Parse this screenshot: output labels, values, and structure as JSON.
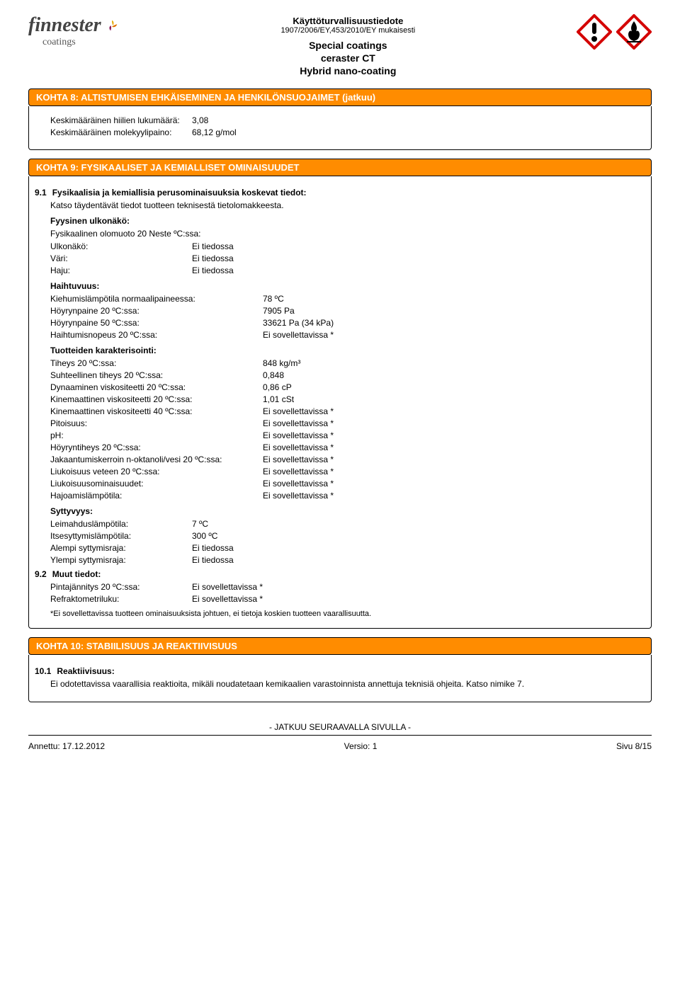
{
  "header": {
    "logo_text": "finnester",
    "logo_sub": "coatings",
    "doc_title": "Käyttöturvallisuustiedote",
    "doc_reg": "1907/2006/EY,453/2010/EY mukaisesti",
    "product_line1": "Special coatings",
    "product_line2": "ceraster CT",
    "product_line3": "Hybrid nano-coating"
  },
  "colors": {
    "section_bar_bg": "#ff8c00",
    "section_bar_fg": "#ffffff",
    "logo_petal1": "#e6a800",
    "logo_petal2": "#e07000",
    "logo_petal3": "#8b1a5a",
    "ghs_border": "#d40000",
    "ghs_symbol": "#000000"
  },
  "section8": {
    "title": "KOHTA 8: ALTISTUMISEN EHKÄISEMINEN JA HENKILÖNSUOJAIMET (jatkuu)",
    "rows": [
      {
        "label": "Keskimääräinen hiilien lukumäärä:",
        "value": "3,08"
      },
      {
        "label": "Keskimääräinen molekyylipaino:",
        "value": "68,12 g/mol"
      }
    ]
  },
  "section9": {
    "title": "KOHTA 9: FYSIKAALISET JA KEMIALLISET OMINAISUUDET",
    "sub1_num": "9.1",
    "sub1_title": "Fysikaalisia ja kemiallisia perusominaisuuksia koskevat tiedot:",
    "intro": "Katso täydentävät tiedot tuotteen teknisestä tietolomakkeesta.",
    "appearance_head": "Fyysinen ulkonäkö:",
    "appearance_line": "Fysikaalinen olomuoto 20 Neste ºC:ssa:",
    "appearance_rows": [
      {
        "label": "Ulkonäkö:",
        "value": "Ei tiedossa"
      },
      {
        "label": "Väri:",
        "value": "Ei tiedossa"
      },
      {
        "label": "Haju:",
        "value": "Ei tiedossa"
      }
    ],
    "volatility_head": "Haihtuvuus:",
    "volatility_rows": [
      {
        "label": "Kiehumislämpötila normaalipaineessa:",
        "value": "78 ºC"
      },
      {
        "label": "Höyrynpaine 20 ºC:ssa:",
        "value": "7905 Pa"
      },
      {
        "label": "Höyrynpaine 50 ºC:ssa:",
        "value": "33621 Pa  (34 kPa)"
      },
      {
        "label": "Haihtumisnopeus 20 ºC:ssa:",
        "value": "Ei sovellettavissa *"
      }
    ],
    "char_head": "Tuotteiden karakterisointi:",
    "char_rows": [
      {
        "label": "Tiheys 20 ºC:ssa:",
        "value": "848 kg/m³"
      },
      {
        "label": "Suhteellinen tiheys 20 ºC:ssa:",
        "value": "0,848"
      },
      {
        "label": "Dynaaminen viskositeetti 20 ºC:ssa:",
        "value": "0,86 cP"
      },
      {
        "label": "Kinemaattinen viskositeetti 20 ºC:ssa:",
        "value": "1,01 cSt"
      },
      {
        "label": "Kinemaattinen viskositeetti 40 ºC:ssa:",
        "value": "Ei sovellettavissa *"
      },
      {
        "label": "Pitoisuus:",
        "value": "Ei sovellettavissa *"
      },
      {
        "label": "pH:",
        "value": "Ei sovellettavissa *"
      },
      {
        "label": "Höyryntiheys 20 ºC:ssa:",
        "value": "Ei sovellettavissa *"
      },
      {
        "label": "Jakaantumiskerroin n-oktanoli/vesi 20 ºC:ssa:",
        "value": "Ei sovellettavissa *"
      },
      {
        "label": "Liukoisuus veteen 20 ºC:ssa:",
        "value": "Ei sovellettavissa *"
      },
      {
        "label": "Liukoisuusominaisuudet:",
        "value": "Ei sovellettavissa *"
      },
      {
        "label": "Hajoamislämpötila:",
        "value": "Ei sovellettavissa *"
      }
    ],
    "flam_head": "Syttyvyys:",
    "flam_rows": [
      {
        "label": "Leimahduslämpötila:",
        "value": "7 ºC"
      },
      {
        "label": "Itsesyttymislämpötila:",
        "value": "300 ºC"
      },
      {
        "label": "Alempi syttymisraja:",
        "value": "Ei tiedossa"
      },
      {
        "label": "Ylempi syttymisraja:",
        "value": "Ei tiedossa"
      }
    ],
    "sub2_num": "9.2",
    "sub2_title": "Muut tiedot:",
    "other_rows": [
      {
        "label": "Pintajännitys 20 ºC:ssa:",
        "value": "Ei sovellettavissa *"
      },
      {
        "label": "Refraktometriluku:",
        "value": "Ei sovellettavissa *"
      }
    ],
    "footnote": "*Ei sovellettavissa tuotteen ominaisuuksista johtuen, ei tietoja koskien tuotteen vaarallisuutta."
  },
  "section10": {
    "title": "KOHTA 10: STABIILISUUS JA REAKTIIVISUUS",
    "sub1_num": "10.1",
    "sub1_title": "Reaktiivisuus:",
    "body": "Ei odotettavissa vaarallisia reaktioita, mikäli noudatetaan kemikaalien varastoinnista annettuja teknisiä ohjeita. Katso nimike 7."
  },
  "footer": {
    "continue": "- JATKUU SEURAAVALLA SIVULLA -",
    "issued_label": "Annettu: 17.12.2012",
    "version_label": "Versio: 1",
    "page_label": "Sivu 8/15"
  }
}
